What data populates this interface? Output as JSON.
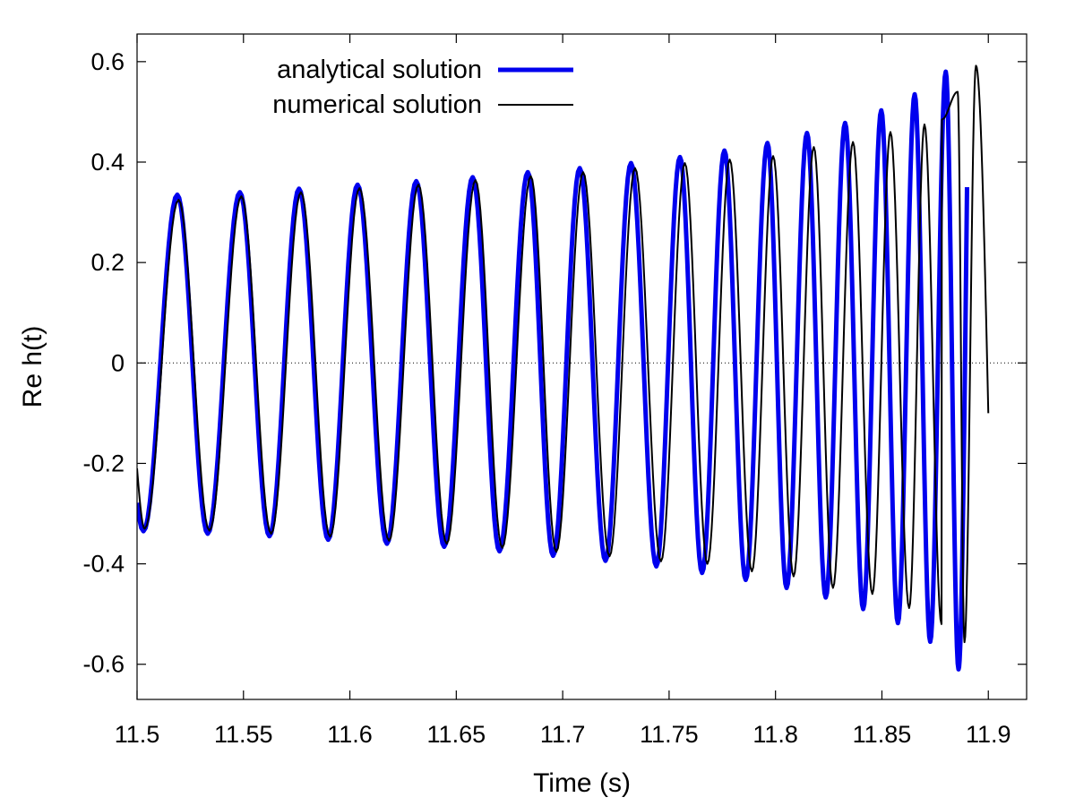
{
  "chart_data": {
    "type": "line",
    "title": "",
    "xlabel": "Time (s)",
    "ylabel": "Re h(t)",
    "xlim": [
      11.5,
      11.918
    ],
    "ylim": [
      -0.67,
      0.655
    ],
    "xticks": [
      11.5,
      11.55,
      11.6,
      11.65,
      11.7,
      11.75,
      11.8,
      11.85,
      11.9
    ],
    "xtick_labels": [
      "11.5",
      "11.55",
      "11.6",
      "11.65",
      "11.7",
      "11.75",
      "11.8",
      "11.85",
      "11.9"
    ],
    "yticks": [
      -0.6,
      -0.4,
      -0.2,
      0,
      0.2,
      0.4,
      0.6
    ],
    "ytick_labels": [
      "-0.6",
      "-0.4",
      "-0.2",
      "0",
      "0.2",
      "0.4",
      "0.6"
    ],
    "zero_line": true,
    "grid": false,
    "legend_position": "top-left",
    "series": [
      {
        "name": "analytical solution",
        "color": "#0000ee",
        "x_range": [
          11.5,
          11.89
        ],
        "peaks": [
          [
            11.5189,
            0.335
          ],
          [
            11.5483,
            0.34
          ],
          [
            11.5761,
            0.347
          ],
          [
            11.6036,
            0.355
          ],
          [
            11.6312,
            0.362
          ],
          [
            11.6577,
            0.37
          ],
          [
            11.6836,
            0.38
          ],
          [
            11.708,
            0.388
          ],
          [
            11.7321,
            0.398
          ],
          [
            11.7551,
            0.41
          ],
          [
            11.776,
            0.423
          ],
          [
            11.7962,
            0.438
          ],
          [
            11.8148,
            0.458
          ],
          [
            11.8327,
            0.478
          ],
          [
            11.8497,
            0.503
          ],
          [
            11.8654,
            0.535
          ],
          [
            11.88,
            0.58
          ]
        ],
        "troughs": [
          [
            11.503,
            -0.335
          ],
          [
            11.5332,
            -0.34
          ],
          [
            11.5622,
            -0.345
          ],
          [
            11.5898,
            -0.352
          ],
          [
            11.6174,
            -0.36
          ],
          [
            11.6443,
            -0.366
          ],
          [
            11.6703,
            -0.375
          ],
          [
            11.6955,
            -0.384
          ],
          [
            11.7201,
            -0.394
          ],
          [
            11.744,
            -0.405
          ],
          [
            11.7655,
            -0.418
          ],
          [
            11.786,
            -0.432
          ],
          [
            11.8052,
            -0.448
          ],
          [
            11.8236,
            -0.467
          ],
          [
            11.8412,
            -0.49
          ],
          [
            11.8575,
            -0.518
          ],
          [
            11.8727,
            -0.555
          ],
          [
            11.886,
            -0.61
          ]
        ],
        "end_point": [
          11.89,
          0.35
        ]
      },
      {
        "name": "numerical solution",
        "color": "#000000",
        "x_range": [
          11.5,
          11.9
        ],
        "peaks": [
          [
            11.5195,
            0.325
          ],
          [
            11.549,
            0.332
          ],
          [
            11.577,
            0.34
          ],
          [
            11.6045,
            0.348
          ],
          [
            11.6322,
            0.355
          ],
          [
            11.659,
            0.364
          ],
          [
            11.685,
            0.372
          ],
          [
            11.7096,
            0.38
          ],
          [
            11.734,
            0.388
          ],
          [
            11.7574,
            0.398
          ],
          [
            11.7785,
            0.405
          ],
          [
            11.7989,
            0.412
          ],
          [
            11.818,
            0.43
          ],
          [
            11.8364,
            0.44
          ],
          [
            11.854,
            0.46
          ],
          [
            11.87,
            0.475
          ],
          [
            11.8782,
            0.485
          ],
          [
            11.8856,
            0.54
          ],
          [
            11.8942,
            0.592
          ]
        ],
        "troughs": [
          [
            11.5036,
            -0.33
          ],
          [
            11.534,
            -0.334
          ],
          [
            11.563,
            -0.34
          ],
          [
            11.5907,
            -0.346
          ],
          [
            11.6184,
            -0.354
          ],
          [
            11.6455,
            -0.36
          ],
          [
            11.6716,
            -0.368
          ],
          [
            11.697,
            -0.376
          ],
          [
            11.722,
            -0.385
          ],
          [
            11.7462,
            -0.395
          ],
          [
            11.768,
            -0.4
          ],
          [
            11.7889,
            -0.415
          ],
          [
            11.8085,
            -0.425
          ],
          [
            11.827,
            -0.448
          ],
          [
            11.8455,
            -0.46
          ],
          [
            11.8628,
            -0.488
          ],
          [
            11.878,
            -0.52
          ],
          [
            11.8888,
            -0.556
          ]
        ],
        "start_point": [
          11.5,
          -0.21
        ],
        "end_point": [
          11.9,
          -0.1
        ]
      }
    ]
  }
}
